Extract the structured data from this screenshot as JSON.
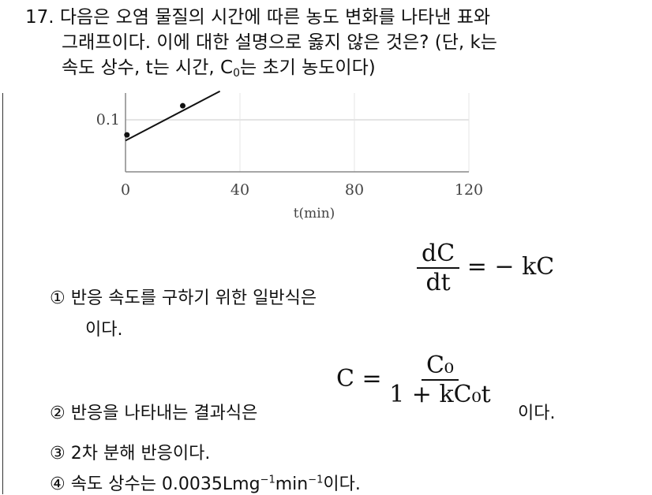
{
  "question": {
    "number": "17.",
    "line1": "다음은 오염 물질의 시간에 따른 농도 변화를 나타낸 표와",
    "line2": "그래프이다. 이에 대한 설명으로 옳지 않은 것은? (단, k는",
    "line3a": "속도 상수, t는 시간, C",
    "line3sub": "0",
    "line3b": "는 초기 농도이다)"
  },
  "chart_data": {
    "type": "scatter",
    "xlabel": "t(min)",
    "x_ticks": [
      "0",
      "40",
      "80",
      "120"
    ],
    "y_ticks": [
      "0.1"
    ],
    "xlim": [
      0,
      120
    ],
    "grid": true,
    "points": [
      {
        "x": 0.5,
        "y": 0.071
      },
      {
        "x": 20,
        "y": 0.127
      }
    ],
    "fit_line": [
      {
        "x": 0,
        "y": 0.06
      },
      {
        "x": 33,
        "y": 0.155
      }
    ]
  },
  "options": [
    {
      "marker": "①",
      "text": "반응 속도를 구하기 위한 일반식은",
      "text2": "이다.",
      "eq_num": "dC",
      "eq_den": "dt",
      "eq_rhs": "= − kC"
    },
    {
      "marker": "②",
      "text": "반응을 나타내는 결과식은",
      "text2": "이다.",
      "eq_lhs": "C =",
      "eq_num": "C₀",
      "eq_den": "1 + kC₀t"
    },
    {
      "marker": "③",
      "text": "2차 분해 반응이다."
    },
    {
      "marker": "④",
      "text": "속도 상수는 0.0035Lmg",
      "sup1": "−1",
      "mid": "min",
      "sup2": "−1",
      "end": "이다."
    }
  ]
}
